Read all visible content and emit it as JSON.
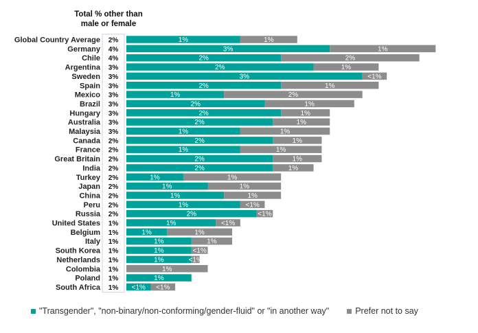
{
  "chart_data": {
    "type": "bar",
    "stacked": true,
    "orientation": "horizontal",
    "total_column_header": "Total % other than male or female",
    "categories": [
      "Global Country Average",
      "Germany",
      "Chile",
      "Argentina",
      "Sweden",
      "Spain",
      "Mexico",
      "Brazil",
      "Hungary",
      "Australia",
      "Malaysia",
      "Canada",
      "France",
      "Great Britain",
      "India",
      "Turkey",
      "Japan",
      "China",
      "Peru",
      "Russia",
      "United States",
      "Belgium",
      "Italy",
      "South Korea",
      "Netherlands",
      "Colombia",
      "Poland",
      "South Africa"
    ],
    "totals": [
      "2%",
      "4%",
      "4%",
      "3%",
      "3%",
      "3%",
      "3%",
      "3%",
      "3%",
      "3%",
      "3%",
      "2%",
      "2%",
      "2%",
      "2%",
      "2%",
      "2%",
      "2%",
      "2%",
      "2%",
      "1%",
      "1%",
      "1%",
      "1%",
      "1%",
      "1%",
      "1%",
      "1%"
    ],
    "series": [
      {
        "name": "\"Transgender\", \"non-binary/non-conforming/gender-fluid\" or \"in another way\"",
        "color": "#00a19a",
        "values": [
          1.4,
          2.5,
          1.9,
          2.3,
          2.9,
          1.9,
          1.2,
          1.7,
          1.9,
          1.8,
          1.4,
          1.8,
          1.4,
          1.8,
          1.8,
          0.7,
          1.0,
          1.2,
          1.4,
          1.6,
          1.1,
          0.5,
          0.8,
          0.8,
          0.8,
          0,
          0.8,
          0.3
        ],
        "labels": [
          "1%",
          "3%",
          "2%",
          "2%",
          "3%",
          "2%",
          "1%",
          "2%",
          "2%",
          "2%",
          "1%",
          "2%",
          "1%",
          "2%",
          "2%",
          "1%",
          "1%",
          "1%",
          "1%",
          "2%",
          "1%",
          "1%",
          "1%",
          "1%",
          "1%",
          "",
          "1%",
          "<1%"
        ]
      },
      {
        "name": "Prefer not to say",
        "color": "#8c8c8c",
        "values": [
          0.7,
          1.3,
          1.7,
          0.8,
          0.3,
          1.2,
          1.7,
          1.1,
          0.6,
          0.7,
          1.1,
          0.6,
          1.0,
          0.6,
          0.5,
          1.2,
          0.9,
          0.7,
          0.3,
          0.2,
          0.3,
          0.8,
          0.5,
          0.2,
          0.1,
          1.0,
          0,
          0.3
        ],
        "labels": [
          "1%",
          "1%",
          "2%",
          "1%",
          "<1%",
          "1%",
          "2%",
          "1%",
          "1%",
          "1%",
          "1%",
          "1%",
          "1%",
          "1%",
          "1%",
          "1%",
          "1%",
          "1%",
          "<1%",
          "<1%",
          "<1%",
          "1%",
          "1%",
          "<1%",
          "<1%",
          "1%",
          "",
          "<1%"
        ]
      }
    ],
    "xlim": [
      0,
      4
    ],
    "legend_position": "bottom"
  }
}
